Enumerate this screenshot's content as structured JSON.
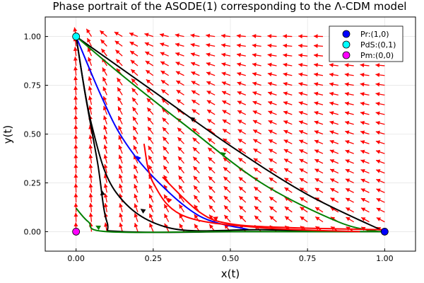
{
  "chart_data": {
    "type": "line",
    "title": "Phase portrait of the ASODE(1) corresponding to the Λ-CDM model",
    "xlabel": "x(t)",
    "ylabel": "y(t)",
    "xlim": [
      -0.1,
      1.1
    ],
    "ylim": [
      -0.1,
      1.1
    ],
    "xticks": [
      0.0,
      0.25,
      0.5,
      0.75,
      1.0
    ],
    "yticks": [
      0.0,
      0.25,
      0.5,
      0.75,
      1.0
    ],
    "xtick_labels": [
      "0.00",
      "0.25",
      "0.50",
      "0.75",
      "1.00"
    ],
    "ytick_labels": [
      "0.00",
      "0.25",
      "0.50",
      "0.75",
      "1.00"
    ],
    "grid": true,
    "legend_position": "top-right",
    "vector_field": {
      "color": "#ff0000",
      "x_start": 0.0,
      "x_end": 1.0,
      "x_step": 0.05,
      "y_start": 0.0,
      "y_end": 1.0,
      "y_step": 0.05,
      "direction": "flow from Pr (1,0) toward PdS (0,1); arrows point up-left"
    },
    "trajectories": [
      {
        "color": "#000000",
        "points": [
          [
            1.0,
            0.0
          ],
          [
            0.75,
            0.19
          ],
          [
            0.5,
            0.44
          ],
          [
            0.25,
            0.72
          ],
          [
            0.0,
            1.0
          ]
        ]
      },
      {
        "color": "#008000",
        "points": [
          [
            0.98,
            0.0
          ],
          [
            0.85,
            0.05
          ],
          [
            0.6,
            0.25
          ],
          [
            0.35,
            0.55
          ],
          [
            0.15,
            0.8
          ],
          [
            0.0,
            1.0
          ]
        ]
      },
      {
        "color": "#0000ff",
        "points": [
          [
            0.56,
            0.01
          ],
          [
            0.4,
            0.08
          ],
          [
            0.25,
            0.28
          ],
          [
            0.15,
            0.48
          ],
          [
            0.08,
            0.7
          ],
          [
            0.0,
            1.0
          ]
        ]
      },
      {
        "color": "#000000",
        "points": [
          [
            0.9,
            0.0
          ],
          [
            0.6,
            0.01
          ],
          [
            0.3,
            0.02
          ],
          [
            0.13,
            0.2
          ],
          [
            0.05,
            0.55
          ],
          [
            0.0,
            1.0
          ]
        ]
      },
      {
        "color": "#000000",
        "points": [
          [
            1.0,
            0.0
          ],
          [
            0.55,
            0.0
          ],
          [
            0.15,
            0.0
          ],
          [
            0.1,
            0.05
          ],
          [
            0.07,
            0.35
          ],
          [
            0.03,
            0.7
          ],
          [
            0.0,
            1.0
          ]
        ]
      },
      {
        "color": "#008000",
        "points": [
          [
            1.0,
            0.0
          ],
          [
            0.5,
            0.0
          ],
          [
            0.1,
            0.0
          ],
          [
            0.04,
            0.05
          ],
          [
            0.0,
            0.12
          ]
        ]
      },
      {
        "color": "#ff0000",
        "points": [
          [
            0.92,
            0.0
          ],
          [
            0.6,
            0.02
          ],
          [
            0.35,
            0.08
          ],
          [
            0.25,
            0.25
          ],
          [
            0.22,
            0.45
          ]
        ]
      },
      {
        "color": "#ff0000",
        "points": [
          [
            1.0,
            0.01
          ],
          [
            0.7,
            0.02
          ],
          [
            0.5,
            0.04
          ],
          [
            0.4,
            0.1
          ],
          [
            0.28,
            0.28
          ]
        ]
      }
    ],
    "series": [
      {
        "name": "Pr:(1,0)",
        "color": "#0000ff",
        "x": [
          1.0
        ],
        "y": [
          0.0
        ]
      },
      {
        "name": "PdS:(0,1)",
        "color": "#00ffff",
        "x": [
          0.0
        ],
        "y": [
          1.0
        ]
      },
      {
        "name": "Pm:(0,0)",
        "color": "#ff00ff",
        "x": [
          0.0
        ],
        "y": [
          0.0
        ]
      }
    ]
  }
}
